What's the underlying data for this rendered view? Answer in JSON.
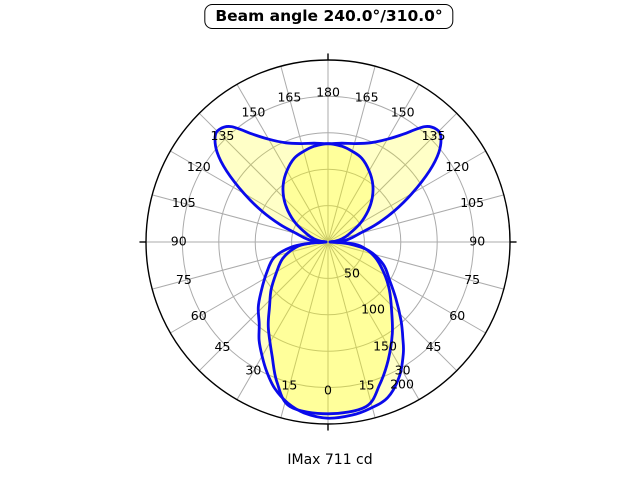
{
  "title": "Beam angle 240.0°/310.0°",
  "footer": "IMax 711 cd",
  "colors": {
    "curve": "#0a0aeb",
    "fill": "#ffff00",
    "grid": "#ababab",
    "outer_ring": "#000000",
    "text": "#000000",
    "background": "#ffffff"
  },
  "chart_data": {
    "type": "polar",
    "title": "Beam angle 240.0°/310.0°",
    "annotation": "IMax 711 cd",
    "imax_cd": 711,
    "beam_angles_deg": [
      240.0,
      310.0
    ],
    "angle_axis": {
      "labels": [
        "0",
        "15",
        "30",
        "45",
        "60",
        "75",
        "90",
        "105",
        "120",
        "135",
        "150",
        "165",
        "180"
      ],
      "step_deg": 15,
      "convention": "0 = down (nadir), 180 = up, labels mirrored on left and right sides"
    },
    "radial_axis": {
      "tick_labels": [
        "50",
        "100",
        "150",
        "200"
      ],
      "ticks": [
        50,
        100,
        150,
        200
      ],
      "max": 250,
      "grid_step": 50
    },
    "series": [
      {
        "name": "curve-1-batwing-plane",
        "points_angle_value": [
          [
            -180,
            135
          ],
          [
            -172,
            137
          ],
          [
            -165,
            140
          ],
          [
            -157,
            148
          ],
          [
            -150,
            163
          ],
          [
            -145,
            181
          ],
          [
            -140,
            207
          ],
          [
            -136,
            215
          ],
          [
            -133,
            212
          ],
          [
            -129,
            196
          ],
          [
            -125,
            170
          ],
          [
            -120,
            133
          ],
          [
            -115,
            100
          ],
          [
            -110,
            70
          ],
          [
            -105,
            45
          ],
          [
            -100,
            33
          ],
          [
            -95,
            22
          ],
          [
            -90,
            3
          ],
          [
            -86,
            26
          ],
          [
            -82,
            51
          ],
          [
            -74,
            77
          ],
          [
            -63,
            95
          ],
          [
            -54,
            113
          ],
          [
            -47,
            131
          ],
          [
            -40,
            147
          ],
          [
            -35,
            165
          ],
          [
            -30,
            181
          ],
          [
            -25,
            198
          ],
          [
            -20,
            214
          ],
          [
            -14,
            228
          ],
          [
            -8,
            237
          ],
          [
            0,
            242
          ],
          [
            8,
            240
          ],
          [
            14,
            236
          ],
          [
            21,
            229
          ],
          [
            28,
            209
          ],
          [
            34,
            185
          ],
          [
            38,
            167
          ],
          [
            43,
            147
          ],
          [
            50,
            122
          ],
          [
            58,
            100
          ],
          [
            68,
            82
          ],
          [
            78,
            57
          ],
          [
            85,
            28
          ],
          [
            90,
            3
          ],
          [
            95,
            22
          ],
          [
            100,
            33
          ],
          [
            105,
            45
          ],
          [
            110,
            70
          ],
          [
            115,
            100
          ],
          [
            120,
            133
          ],
          [
            125,
            170
          ],
          [
            129,
            196
          ],
          [
            133,
            212
          ],
          [
            136,
            215
          ],
          [
            140,
            207
          ],
          [
            145,
            181
          ],
          [
            150,
            163
          ],
          [
            157,
            148
          ],
          [
            165,
            140
          ],
          [
            172,
            137
          ]
        ]
      },
      {
        "name": "curve-2-round-plane",
        "points_angle_value": [
          [
            -180,
            135
          ],
          [
            -172,
            133
          ],
          [
            -165,
            129
          ],
          [
            -158,
            124
          ],
          [
            -150,
            113
          ],
          [
            -142,
            100
          ],
          [
            -135,
            86
          ],
          [
            -128,
            70
          ],
          [
            -120,
            51
          ],
          [
            -110,
            30
          ],
          [
            -103,
            20
          ],
          [
            -96,
            10
          ],
          [
            -90,
            3
          ],
          [
            -86,
            24
          ],
          [
            -81,
            44
          ],
          [
            -70,
            66
          ],
          [
            -59,
            83
          ],
          [
            -50,
            102
          ],
          [
            -42,
            120
          ],
          [
            -35,
            143
          ],
          [
            -26,
            175
          ],
          [
            -20,
            205
          ],
          [
            -13,
            232
          ],
          [
            0,
            236
          ],
          [
            13,
            232
          ],
          [
            20,
            208
          ],
          [
            27,
            182
          ],
          [
            35,
            154
          ],
          [
            43,
            128
          ],
          [
            52,
            107
          ],
          [
            61,
            88
          ],
          [
            72,
            68
          ],
          [
            83,
            45
          ],
          [
            88,
            22
          ],
          [
            90,
            3
          ],
          [
            96,
            10
          ],
          [
            103,
            20
          ],
          [
            110,
            30
          ],
          [
            120,
            51
          ],
          [
            128,
            70
          ],
          [
            135,
            86
          ],
          [
            142,
            100
          ],
          [
            150,
            113
          ],
          [
            158,
            124
          ],
          [
            165,
            129
          ],
          [
            172,
            133
          ]
        ]
      }
    ],
    "layout_hints": {
      "grid": "on",
      "outer_ring_value": 250,
      "fill_opacity": 0.22
    }
  }
}
